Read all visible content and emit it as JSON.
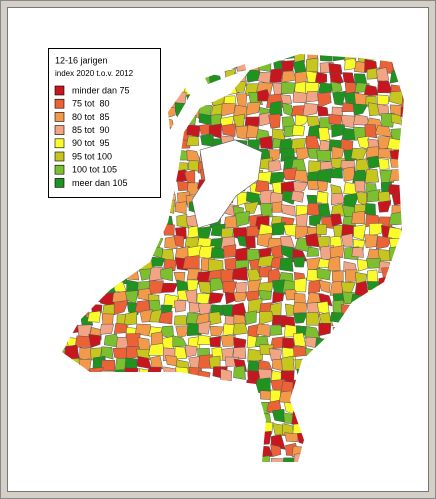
{
  "legend": {
    "title": "12-16 jarigen",
    "subtitle": "index 2020 t.o.v. 2012",
    "items": [
      {
        "label": "minder dan 75",
        "color": "#c8161e"
      },
      {
        "label": "75 tot  80",
        "color": "#ec6237"
      },
      {
        "label": "80 tot  85",
        "color": "#f29a4a"
      },
      {
        "label": "85 tot  90",
        "color": "#f2a584"
      },
      {
        "label": "90 tot  95",
        "color": "#fbfb2c"
      },
      {
        "label": "95 tot 100",
        "color": "#c6c61e"
      },
      {
        "label": "100 tot 105",
        "color": "#7cc030"
      },
      {
        "label": "meer dan 105",
        "color": "#1f921f"
      }
    ]
  }
}
